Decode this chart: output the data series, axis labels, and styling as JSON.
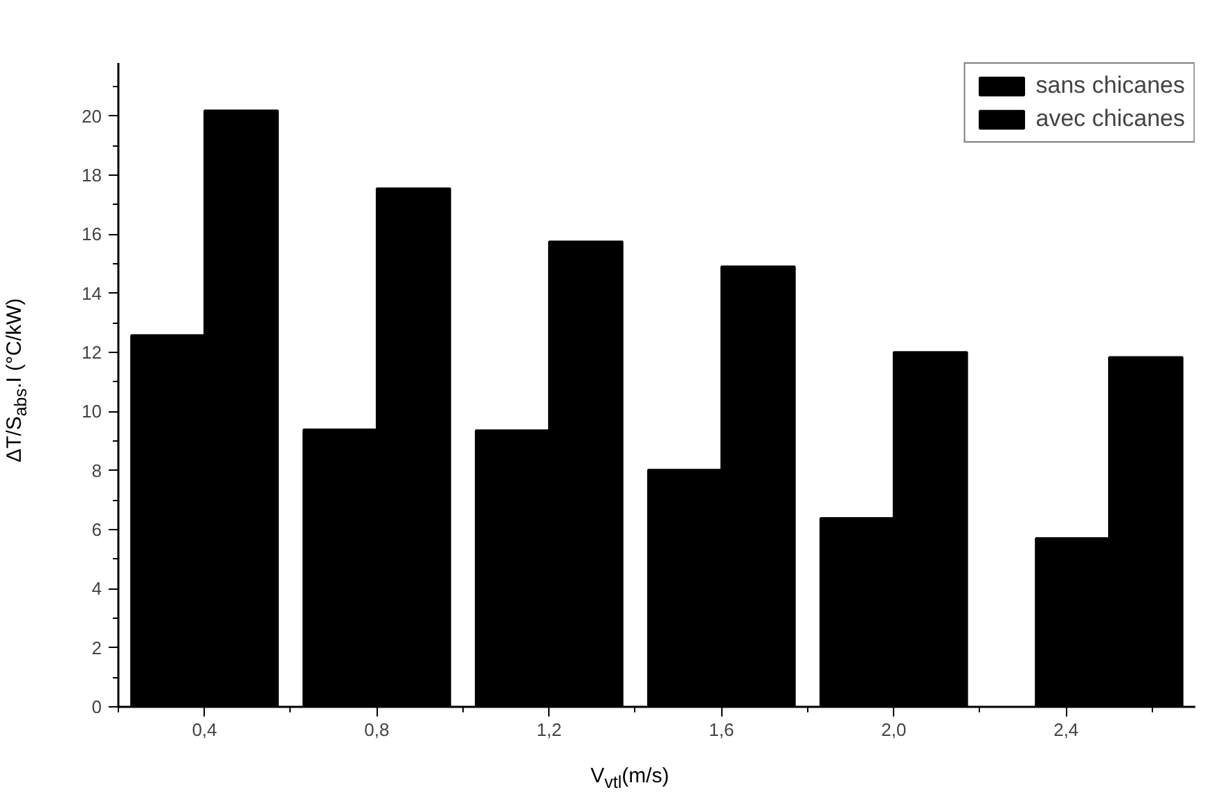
{
  "chart_data": {
    "type": "bar",
    "xlabel": "V$_{vtl}$(m/s)",
    "ylabel": "ΔT/S$_{abs}$.I (°C/kW)",
    "x": [
      0.4,
      0.8,
      1.2,
      1.6,
      2.0,
      2.5
    ],
    "series": [
      {
        "name": "sans chicanes",
        "color": "#000000",
        "values": [
          12.58,
          9.39,
          9.36,
          8.02,
          6.39,
          5.71
        ]
      },
      {
        "name": "avec chicanes",
        "color": "#000000",
        "values": [
          20.19,
          17.55,
          15.75,
          14.91,
          12.01,
          11.84
        ]
      }
    ],
    "xlim": [
      0.2,
      2.7
    ],
    "xticks": [
      {
        "value": 0.2,
        "label": null
      },
      {
        "value": 0.4,
        "label": "0,4"
      },
      {
        "value": 0.6,
        "label": null
      },
      {
        "value": 0.8,
        "label": "0,8"
      },
      {
        "value": 1.0,
        "label": null
      },
      {
        "value": 1.2,
        "label": "1,2"
      },
      {
        "value": 1.4,
        "label": null
      },
      {
        "value": 1.6,
        "label": "1,6"
      },
      {
        "value": 1.8,
        "label": null
      },
      {
        "value": 2.0,
        "label": "2,0"
      },
      {
        "value": 2.2,
        "label": null
      },
      {
        "value": 2.4,
        "label": "2,4"
      },
      {
        "value": 2.6,
        "label": null
      }
    ],
    "ylim": [
      0,
      21.8
    ],
    "yticks": [
      0,
      {
        "value": 1,
        "label": null
      },
      2,
      {
        "value": 3,
        "label": null
      },
      4,
      {
        "value": 5,
        "label": null
      },
      6,
      {
        "value": 7,
        "label": null
      },
      8,
      {
        "value": 9,
        "label": null
      },
      10,
      {
        "value": 11,
        "label": null
      },
      12,
      {
        "value": 13,
        "label": null
      },
      14,
      {
        "value": 15,
        "label": null
      },
      16,
      {
        "value": 17,
        "label": null
      },
      18,
      {
        "value": 19,
        "label": null
      },
      20,
      {
        "value": 21,
        "label": null
      }
    ],
    "grid": false,
    "legend": "top right"
  }
}
